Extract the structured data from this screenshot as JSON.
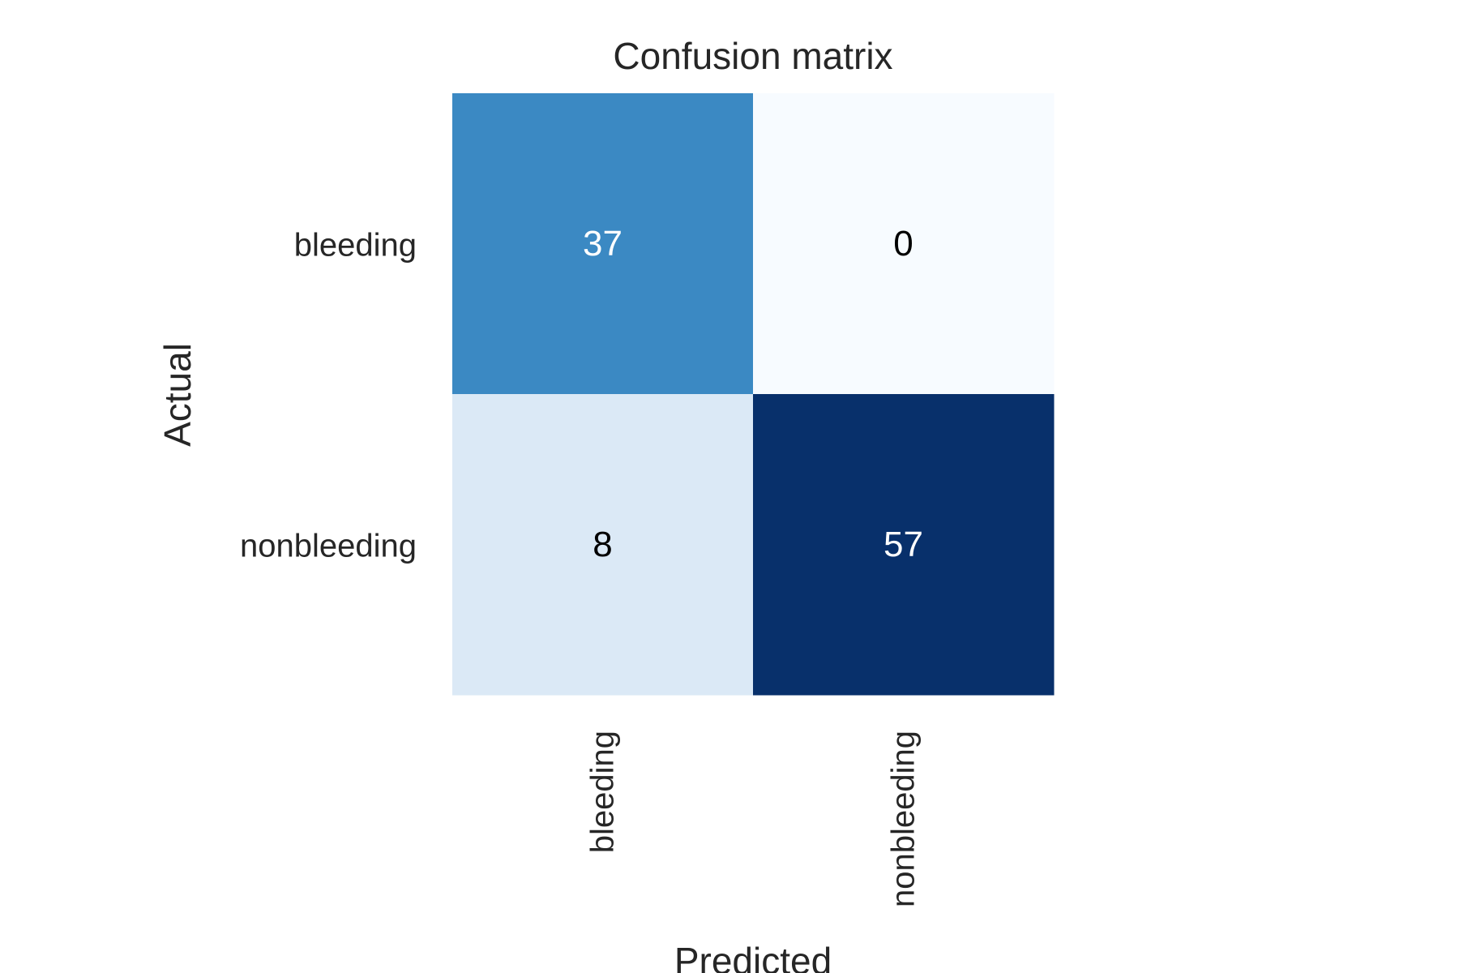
{
  "chart_data": {
    "type": "heatmap",
    "title": "Confusion matrix",
    "xlabel": "Predicted",
    "ylabel": "Actual",
    "x_categories": [
      "bleeding",
      "nonbleeding"
    ],
    "y_categories": [
      "bleeding",
      "nonbleeding"
    ],
    "values": [
      [
        37,
        0
      ],
      [
        8,
        57
      ]
    ],
    "colormap": "Blues",
    "color_range": [
      0,
      57
    ],
    "colorbar": false,
    "grid": false,
    "colors": {
      "cells": [
        [
          "#3b89c3",
          "#f7fbff"
        ],
        [
          "#dbe9f6",
          "#08306b"
        ]
      ],
      "annotation_light": "#ffffff",
      "annotation_dark": "#000000",
      "text": "#262626"
    }
  }
}
